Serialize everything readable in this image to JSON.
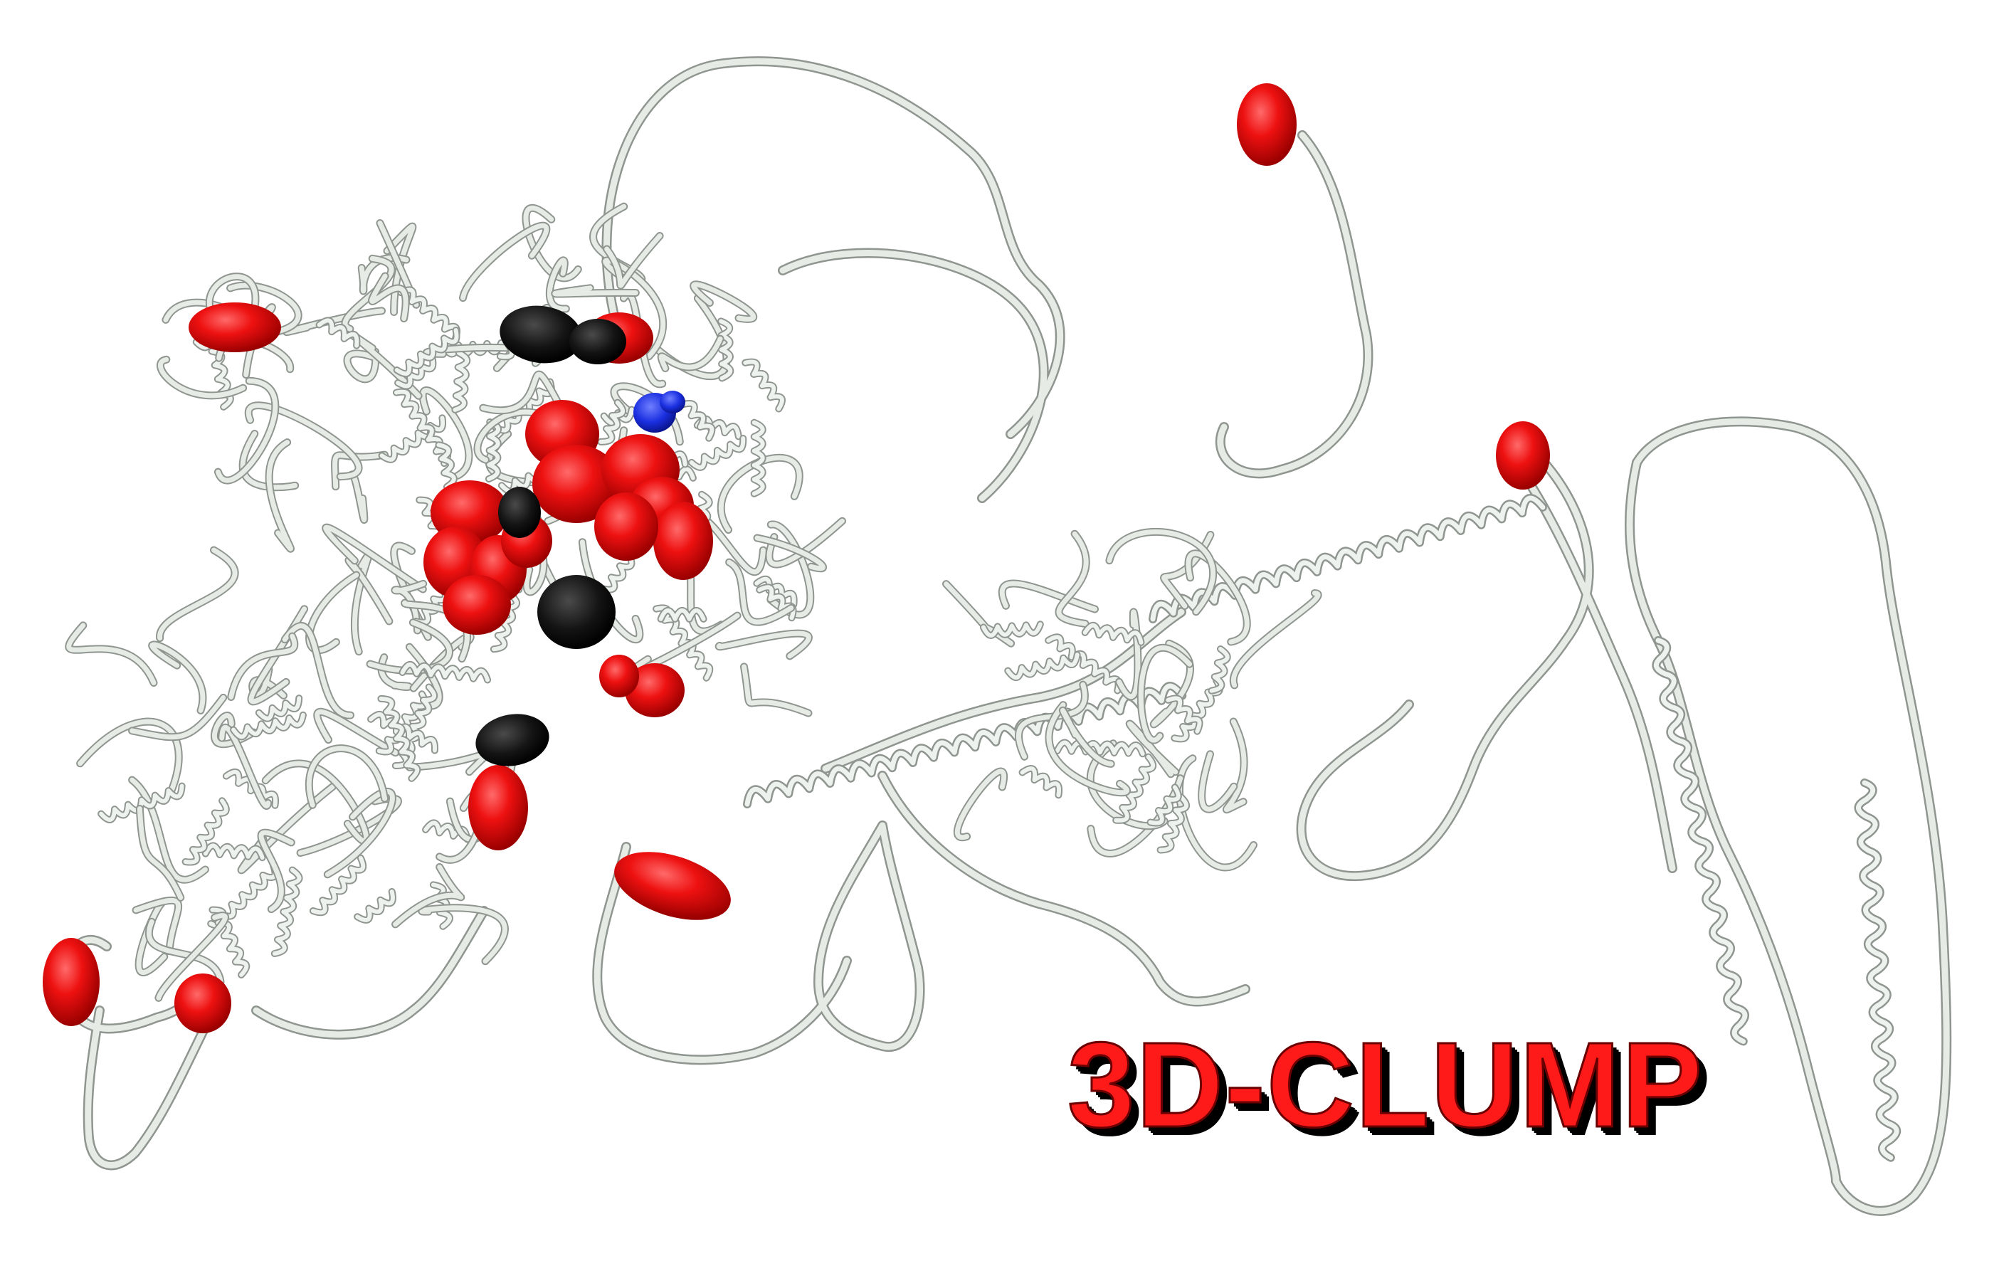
{
  "image": {
    "description_kind": "protein ribbon structure with highlighted residues",
    "title": "3D-CLUMP"
  },
  "colors": {
    "background": "#ffffff",
    "ribbon": "#e6ebe6",
    "ribbon_edge": "#8f958f",
    "highlight_red": "#ee1111",
    "highlight_black": "#111111",
    "highlight_blue": "#1a2fe0",
    "title_fill": "#ff1a1a",
    "title_shadow": "#000000"
  }
}
